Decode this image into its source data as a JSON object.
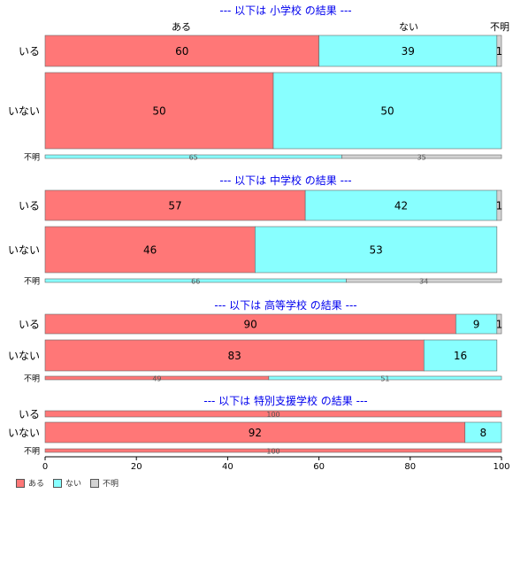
{
  "chart_data": {
    "type": "bar",
    "orientation": "horizontal",
    "stacked": "percent",
    "xlim": [
      0,
      100
    ],
    "x_ticks": [
      "0",
      "20",
      "40",
      "60",
      "80",
      "100"
    ],
    "categories": [
      "ある",
      "ない",
      "不明"
    ],
    "colors": [
      "#ff7777",
      "#88ffff",
      "#d3d3d3"
    ],
    "top_labels": [
      "ある",
      "ない",
      "不明"
    ],
    "panels": [
      {
        "title": "--- 以下は 小学校 の結果 ---",
        "rows": [
          {
            "label": "いる",
            "values": [
              60,
              39,
              1
            ]
          },
          {
            "label": "いない",
            "values": [
              50,
              50,
              0
            ]
          },
          {
            "label": "不明",
            "values": [
              0,
              65,
              35
            ]
          }
        ]
      },
      {
        "title": "--- 以下は 中学校 の結果 ---",
        "rows": [
          {
            "label": "いる",
            "values": [
              57,
              42,
              1
            ]
          },
          {
            "label": "いない",
            "values": [
              46,
              53,
              0
            ]
          },
          {
            "label": "不明",
            "values": [
              0,
              66,
              34
            ]
          }
        ]
      },
      {
        "title": "--- 以下は 高等学校 の結果 ---",
        "rows": [
          {
            "label": "いる",
            "values": [
              90,
              9,
              1
            ]
          },
          {
            "label": "いない",
            "values": [
              83,
              16,
              0
            ]
          },
          {
            "label": "不明",
            "values": [
              49,
              51,
              0
            ]
          }
        ]
      },
      {
        "title": "--- 以下は 特別支援学校 の結果 ---",
        "rows": [
          {
            "label": "いる",
            "values": [
              100,
              0,
              0
            ]
          },
          {
            "label": "いない",
            "values": [
              92,
              8,
              0
            ]
          },
          {
            "label": "不明",
            "values": [
              100,
              0,
              0
            ]
          }
        ]
      }
    ],
    "legend": {
      "position": "bottom-left",
      "items": [
        "ある",
        "ない",
        "不明"
      ]
    }
  }
}
